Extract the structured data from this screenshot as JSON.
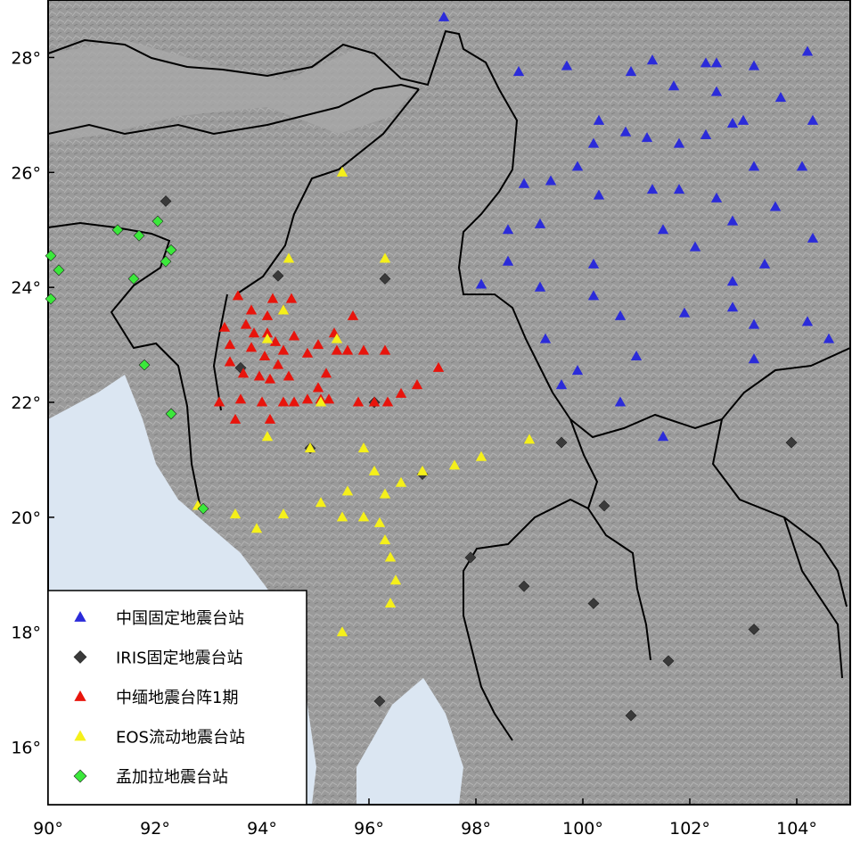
{
  "map": {
    "lon_range": [
      90,
      105
    ],
    "lat_range": [
      15,
      29
    ],
    "lon_ticks": [
      {
        "value": 90,
        "label": "90°"
      },
      {
        "value": 92,
        "label": "92°"
      },
      {
        "value": 94,
        "label": "94°"
      },
      {
        "value": 96,
        "label": "96°"
      },
      {
        "value": 98,
        "label": "98°"
      },
      {
        "value": 100,
        "label": "100°"
      },
      {
        "value": 102,
        "label": "102°"
      },
      {
        "value": 104,
        "label": "104°"
      }
    ],
    "lat_ticks": [
      {
        "value": 16,
        "label": "16°"
      },
      {
        "value": 18,
        "label": "18°"
      },
      {
        "value": 20,
        "label": "20°"
      },
      {
        "value": 22,
        "label": "22°"
      },
      {
        "value": 24,
        "label": "24°"
      },
      {
        "value": 26,
        "label": "26°"
      },
      {
        "value": 28,
        "label": "28°"
      }
    ],
    "colors": {
      "land": "#9c9c9c",
      "sea": "#dbe6f2",
      "border": "#000000"
    },
    "legend": [
      {
        "key": "china",
        "label": "中国固定地震台站",
        "symbol": "triangle",
        "color": "#2b2bd9"
      },
      {
        "key": "iris",
        "label": "IRIS固定地震台站",
        "symbol": "diamond",
        "color": "#3a3a3a"
      },
      {
        "key": "chinamyanmar",
        "label": "中缅地震台阵1期",
        "symbol": "triangle",
        "color": "#e8140c"
      },
      {
        "key": "eos",
        "label": "EOS流动地震台站",
        "symbol": "triangle",
        "color": "#f5f01a"
      },
      {
        "key": "bangladesh",
        "label": "孟加拉地震台站",
        "symbol": "diamond",
        "color": "#3be83b"
      }
    ]
  },
  "chart_data": {
    "type": "scatter",
    "xlim": [
      90,
      105
    ],
    "ylim": [
      15,
      29
    ],
    "series": [
      {
        "name": "中国固定地震台站",
        "points": [
          [
            97.4,
            28.7
          ],
          [
            98.8,
            27.75
          ],
          [
            99.7,
            27.85
          ],
          [
            100.9,
            27.75
          ],
          [
            101.3,
            27.95
          ],
          [
            102.3,
            27.9
          ],
          [
            102.5,
            27.9
          ],
          [
            103.2,
            27.85
          ],
          [
            104.2,
            28.1
          ],
          [
            101.7,
            27.5
          ],
          [
            102.5,
            27.4
          ],
          [
            103.7,
            27.3
          ],
          [
            100.3,
            26.9
          ],
          [
            100.8,
            26.7
          ],
          [
            101.2,
            26.6
          ],
          [
            101.8,
            26.5
          ],
          [
            102.3,
            26.65
          ],
          [
            102.8,
            26.85
          ],
          [
            103,
            26.9
          ],
          [
            104.3,
            26.9
          ],
          [
            100.2,
            26.5
          ],
          [
            99.9,
            26.1
          ],
          [
            98.9,
            25.8
          ],
          [
            99.4,
            25.85
          ],
          [
            100.3,
            25.6
          ],
          [
            101.3,
            25.7
          ],
          [
            101.8,
            25.7
          ],
          [
            102.5,
            25.55
          ],
          [
            103.2,
            26.1
          ],
          [
            104.1,
            26.1
          ],
          [
            103.6,
            25.4
          ],
          [
            98.6,
            25
          ],
          [
            99.2,
            25.1
          ],
          [
            101.5,
            25
          ],
          [
            102.8,
            25.15
          ],
          [
            104.3,
            24.85
          ],
          [
            102.1,
            24.7
          ],
          [
            98.6,
            24.45
          ],
          [
            100.2,
            24.4
          ],
          [
            103.4,
            24.4
          ],
          [
            98.1,
            24.05
          ],
          [
            99.2,
            24
          ],
          [
            100.2,
            23.85
          ],
          [
            102.8,
            24.1
          ],
          [
            102.8,
            23.65
          ],
          [
            101.9,
            23.55
          ],
          [
            100.7,
            23.5
          ],
          [
            103.2,
            23.35
          ],
          [
            104.2,
            23.4
          ],
          [
            99.3,
            23.1
          ],
          [
            104.6,
            23.1
          ],
          [
            101,
            22.8
          ],
          [
            103.2,
            22.75
          ],
          [
            99.9,
            22.55
          ],
          [
            99.6,
            22.3
          ],
          [
            100.7,
            22
          ],
          [
            101.5,
            21.4
          ]
        ]
      },
      {
        "name": "IRIS固定地震台站",
        "points": [
          [
            92.2,
            25.5
          ],
          [
            94.3,
            24.2
          ],
          [
            96.3,
            24.15
          ],
          [
            93.6,
            22.6
          ],
          [
            96.1,
            22
          ],
          [
            94.9,
            21.2
          ],
          [
            97,
            20.75
          ],
          [
            99.6,
            21.3
          ],
          [
            100.4,
            20.2
          ],
          [
            103.9,
            21.3
          ],
          [
            97.9,
            19.3
          ],
          [
            98.9,
            18.8
          ],
          [
            100.2,
            18.5
          ],
          [
            103.2,
            18.05
          ],
          [
            101.6,
            17.5
          ],
          [
            96.2,
            16.8
          ],
          [
            100.9,
            16.55
          ]
        ]
      },
      {
        "name": "中缅地震台阵1期",
        "points": [
          [
            93.55,
            23.85
          ],
          [
            94.2,
            23.8
          ],
          [
            94.55,
            23.8
          ],
          [
            93.8,
            23.6
          ],
          [
            94.4,
            23.6
          ],
          [
            93.3,
            23.3
          ],
          [
            93.7,
            23.35
          ],
          [
            94.1,
            23.5
          ],
          [
            94.1,
            23.2
          ],
          [
            94.6,
            23.15
          ],
          [
            95.7,
            23.5
          ],
          [
            93.4,
            23
          ],
          [
            93.85,
            23.2
          ],
          [
            93.8,
            22.95
          ],
          [
            94.25,
            23.05
          ],
          [
            94.4,
            22.9
          ],
          [
            95.05,
            23
          ],
          [
            95.35,
            23.2
          ],
          [
            95.4,
            22.9
          ],
          [
            95.6,
            22.9
          ],
          [
            95.9,
            22.9
          ],
          [
            96.3,
            22.9
          ],
          [
            93.4,
            22.7
          ],
          [
            93.65,
            22.5
          ],
          [
            94.05,
            22.8
          ],
          [
            94.3,
            22.65
          ],
          [
            94.85,
            22.85
          ],
          [
            93.95,
            22.45
          ],
          [
            94.15,
            22.4
          ],
          [
            94.5,
            22.45
          ],
          [
            95.05,
            22.25
          ],
          [
            95.2,
            22.5
          ],
          [
            95.1,
            22.05
          ],
          [
            93.2,
            22
          ],
          [
            93.6,
            22.05
          ],
          [
            94,
            22
          ],
          [
            94.4,
            22
          ],
          [
            94.6,
            22
          ],
          [
            94.85,
            22.05
          ],
          [
            95.25,
            22.05
          ],
          [
            95.8,
            22
          ],
          [
            96.1,
            22
          ],
          [
            96.35,
            22
          ],
          [
            96.6,
            22.15
          ],
          [
            96.9,
            22.3
          ],
          [
            97.3,
            22.6
          ],
          [
            93.5,
            21.7
          ],
          [
            94.15,
            21.7
          ]
        ]
      },
      {
        "name": "EOS流动地震台站",
        "points": [
          [
            95.5,
            26
          ],
          [
            94.5,
            24.5
          ],
          [
            96.3,
            24.5
          ],
          [
            94.4,
            23.6
          ],
          [
            95.4,
            23.1
          ],
          [
            94.1,
            23.1
          ],
          [
            95.1,
            22
          ],
          [
            94.1,
            21.4
          ],
          [
            94.9,
            21.2
          ],
          [
            95.9,
            21.2
          ],
          [
            96.1,
            20.8
          ],
          [
            97,
            20.8
          ],
          [
            97.6,
            20.9
          ],
          [
            98.1,
            21.05
          ],
          [
            99,
            21.35
          ],
          [
            96.6,
            20.6
          ],
          [
            95.6,
            20.45
          ],
          [
            96.3,
            20.4
          ],
          [
            95.1,
            20.25
          ],
          [
            93.5,
            20.05
          ],
          [
            94.4,
            20.05
          ],
          [
            92.8,
            20.2
          ],
          [
            93.9,
            19.8
          ],
          [
            95.5,
            20
          ],
          [
            95.9,
            20
          ],
          [
            96.2,
            19.9
          ],
          [
            96.3,
            19.6
          ],
          [
            96.4,
            19.3
          ],
          [
            96.5,
            18.9
          ],
          [
            96.4,
            18.5
          ],
          [
            95.5,
            18
          ]
        ]
      },
      {
        "name": "孟加拉地震台站",
        "points": [
          [
            92.05,
            25.15
          ],
          [
            91.3,
            25
          ],
          [
            91.7,
            24.9
          ],
          [
            92.3,
            24.65
          ],
          [
            92.2,
            24.45
          ],
          [
            90.05,
            24.55
          ],
          [
            90.2,
            24.3
          ],
          [
            91.6,
            24.15
          ],
          [
            90.05,
            23.8
          ],
          [
            91.8,
            22.65
          ],
          [
            92.3,
            21.8
          ],
          [
            92.9,
            20.15
          ]
        ]
      }
    ]
  }
}
